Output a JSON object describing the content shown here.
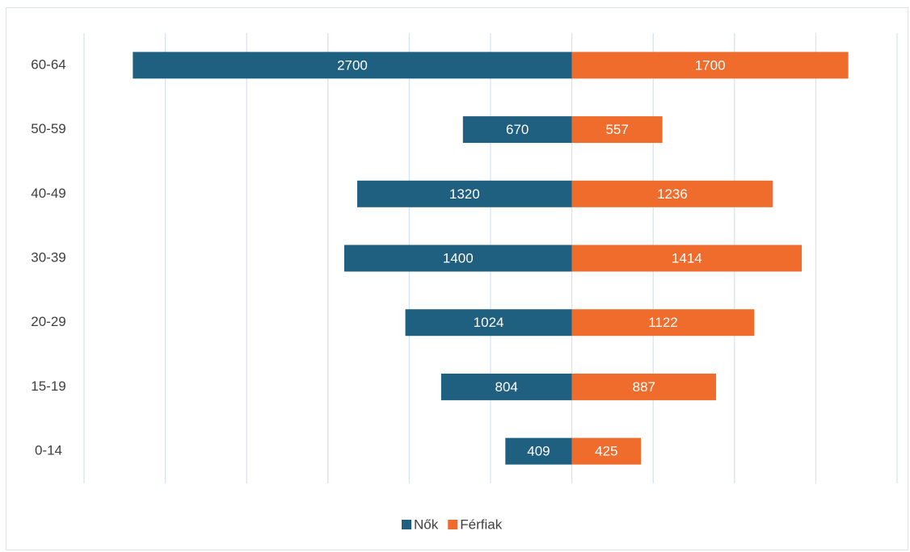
{
  "chart_data": {
    "type": "pyramid",
    "categories": [
      "60-64",
      "50-59",
      "40-49",
      "30-39",
      "20-29",
      "15-19",
      "0-14"
    ],
    "series": [
      {
        "name": "Nők",
        "color": "#1f5f80",
        "side": "left",
        "values": [
          2700,
          670,
          1320,
          1400,
          1024,
          804,
          409
        ]
      },
      {
        "name": "Férfiak",
        "color": "#ef6c2c",
        "side": "right",
        "values": [
          1700,
          557,
          1236,
          1414,
          1122,
          887,
          425
        ]
      }
    ],
    "xlim": [
      -3000,
      2000
    ],
    "xticks": [
      -3000,
      -2500,
      -2000,
      -1500,
      -1000,
      -500,
      0,
      500,
      1000,
      1500,
      2000
    ],
    "grid": true,
    "legend": "bottom"
  }
}
